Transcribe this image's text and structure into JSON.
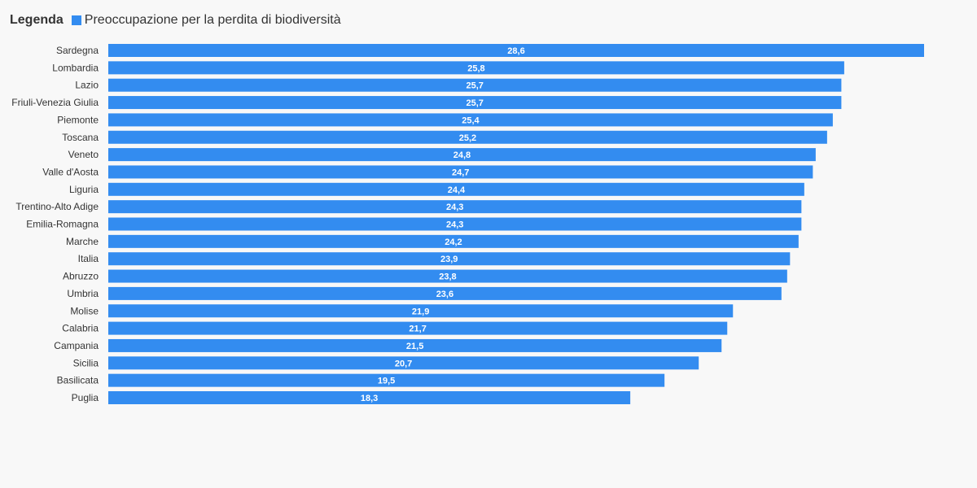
{
  "legend": {
    "title": "Legenda",
    "series_label": "Preoccupazione per la perdita di biodiversità",
    "color": "#338cf0"
  },
  "chart_data": {
    "type": "bar",
    "orientation": "horizontal",
    "title": "",
    "xlabel": "",
    "ylabel": "",
    "grid": false,
    "legend_position": "top-left",
    "bar_color": "#338cf0",
    "categories": [
      "Sardegna",
      "Lombardia",
      "Lazio",
      "Friuli-Venezia Giulia",
      "Piemonte",
      "Toscana",
      "Veneto",
      "Valle d'Aosta",
      "Liguria",
      "Trentino-Alto Adige",
      "Emilia-Romagna",
      "Marche",
      "Italia",
      "Abruzzo",
      "Umbria",
      "Molise",
      "Calabria",
      "Campania",
      "Sicilia",
      "Basilicata",
      "Puglia"
    ],
    "values": [
      28.6,
      25.8,
      25.7,
      25.7,
      25.4,
      25.2,
      24.8,
      24.7,
      24.4,
      24.3,
      24.3,
      24.2,
      23.9,
      23.8,
      23.6,
      21.9,
      21.7,
      21.5,
      20.7,
      19.5,
      18.3
    ],
    "value_labels": [
      "28,6",
      "25,8",
      "25,7",
      "25,7",
      "25,4",
      "25,2",
      "24,8",
      "24,7",
      "24,4",
      "24,3",
      "24,3",
      "24,2",
      "23,9",
      "23,8",
      "23,6",
      "21,9",
      "21,7",
      "21,5",
      "20,7",
      "19,5",
      "18,3"
    ],
    "xlim": [
      0,
      28.6
    ]
  }
}
